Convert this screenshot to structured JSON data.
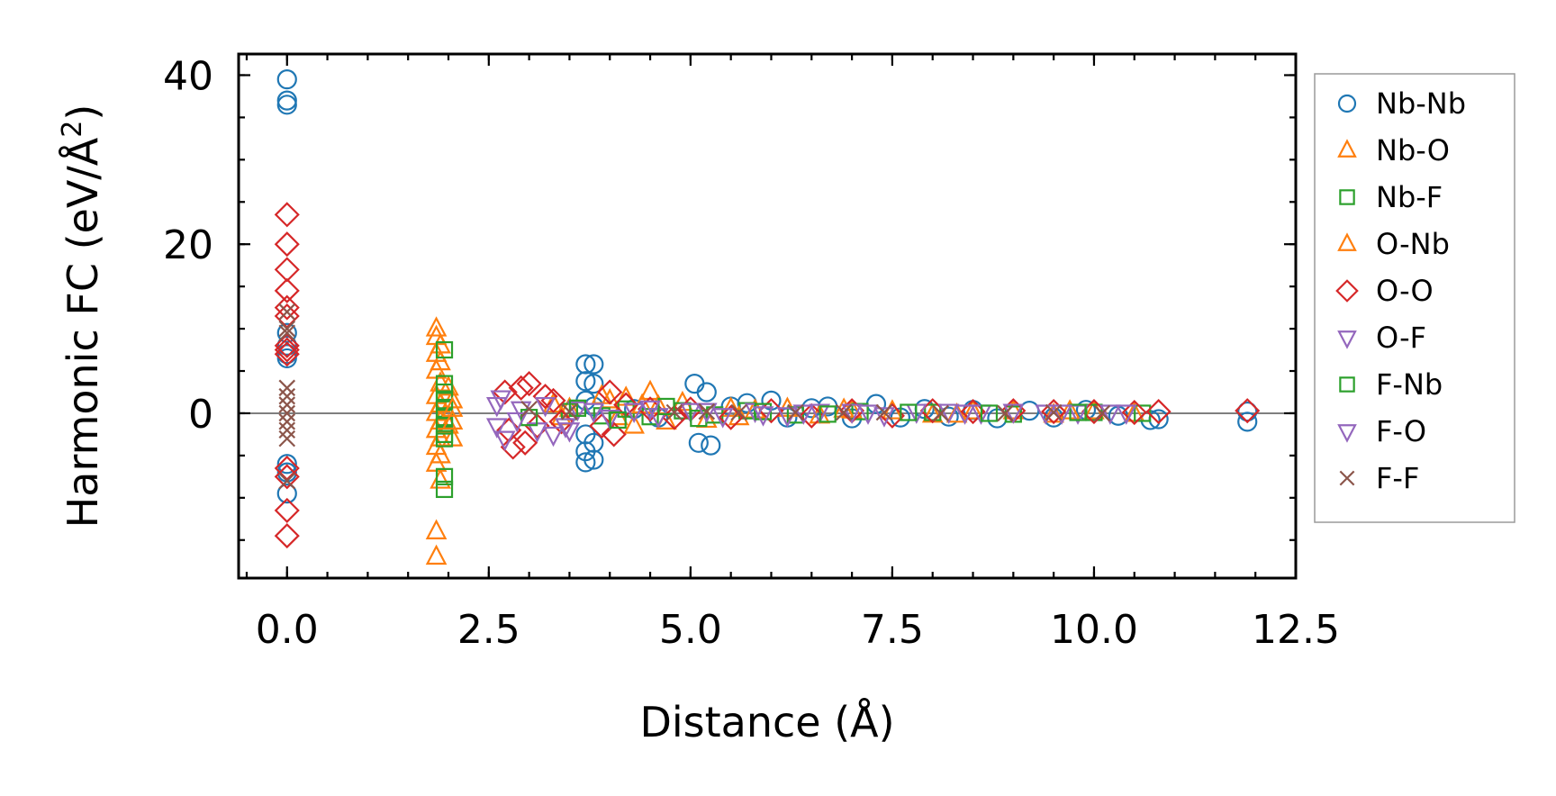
{
  "chart_data": {
    "type": "scatter",
    "title": "",
    "xlabel": "Distance (Å)",
    "ylabel_main": "Harmonic FC (eV/Å",
    "ylabel_sup": "2",
    "ylabel_close": ")",
    "xlim": [
      -0.6,
      12.5
    ],
    "ylim": [
      -19.5,
      42.5
    ],
    "xticks": [
      0.0,
      2.5,
      5.0,
      7.5,
      10.0,
      12.5
    ],
    "xtick_labels": [
      "0.0",
      "2.5",
      "5.0",
      "7.5",
      "10.0",
      "12.5"
    ],
    "yticks": [
      0,
      20,
      40
    ],
    "ytick_labels": [
      "0",
      "20",
      "40"
    ],
    "x_minor_step": 0.5,
    "y_minor_step": 5,
    "zero_line": true,
    "legend_position": "outside-right",
    "series": [
      {
        "name": "Nb-Nb",
        "marker": "circle",
        "color": "#1f77b4",
        "points": [
          [
            0,
            39.5
          ],
          [
            0,
            37
          ],
          [
            0,
            36.5
          ],
          [
            0,
            9.5
          ],
          [
            0,
            8
          ],
          [
            0,
            7
          ],
          [
            0,
            6.5
          ],
          [
            0,
            -6
          ],
          [
            0,
            -7
          ],
          [
            0,
            -9.5
          ],
          [
            3.7,
            5.8
          ],
          [
            3.8,
            5.8
          ],
          [
            3.7,
            3.8
          ],
          [
            3.8,
            3.5
          ],
          [
            3.7,
            1.5
          ],
          [
            3.8,
            0.8
          ],
          [
            3.7,
            -2.5
          ],
          [
            3.8,
            -3.5
          ],
          [
            3.7,
            -4.5
          ],
          [
            3.8,
            -5.5
          ],
          [
            3.7,
            -5.8
          ],
          [
            4.3,
            0.5
          ],
          [
            4.6,
            -0.5
          ],
          [
            5.05,
            3.5
          ],
          [
            5.1,
            -3.5
          ],
          [
            5.2,
            2.5
          ],
          [
            5.25,
            -3.8
          ],
          [
            5.5,
            0.8
          ],
          [
            5.7,
            1.2
          ],
          [
            6.0,
            1.5
          ],
          [
            6.2,
            -0.5
          ],
          [
            6.5,
            0.6
          ],
          [
            6.7,
            0.8
          ],
          [
            7.0,
            -0.6
          ],
          [
            7.3,
            1.1
          ],
          [
            7.6,
            -0.5
          ],
          [
            7.9,
            0.5
          ],
          [
            8.2,
            -0.4
          ],
          [
            8.5,
            0.4
          ],
          [
            8.8,
            -0.6
          ],
          [
            9.2,
            0.3
          ],
          [
            9.5,
            -0.5
          ],
          [
            9.9,
            0.4
          ],
          [
            10.3,
            -0.3
          ],
          [
            10.7,
            -0.8
          ],
          [
            10.8,
            -0.7
          ],
          [
            11.9,
            -1.0
          ],
          [
            11.9,
            0.2
          ]
        ]
      },
      {
        "name": "Nb-O",
        "marker": "triangle-up",
        "color": "#ff7f0e",
        "points": [
          [
            1.85,
            10
          ],
          [
            1.85,
            9
          ],
          [
            1.9,
            8
          ],
          [
            1.85,
            7
          ],
          [
            1.9,
            6
          ],
          [
            1.85,
            5
          ],
          [
            1.9,
            3.5
          ],
          [
            1.85,
            2
          ],
          [
            1.9,
            1
          ],
          [
            1.85,
            0
          ],
          [
            1.9,
            -1
          ],
          [
            1.85,
            -2
          ],
          [
            1.9,
            -3
          ],
          [
            1.85,
            -4
          ],
          [
            1.9,
            -5
          ],
          [
            1.85,
            -6
          ],
          [
            1.9,
            -8
          ],
          [
            1.85,
            -14
          ],
          [
            1.85,
            -17
          ],
          [
            2.0,
            3
          ],
          [
            2.05,
            1.5
          ],
          [
            2.0,
            -1.5
          ],
          [
            2.05,
            -3
          ],
          [
            3.3,
            1
          ],
          [
            3.5,
            0.5
          ],
          [
            3.9,
            2
          ],
          [
            4.0,
            1.5
          ],
          [
            4.1,
            -0.5
          ],
          [
            4.2,
            1.8
          ],
          [
            4.3,
            -1.5
          ],
          [
            4.5,
            2.5
          ],
          [
            4.6,
            0.8
          ],
          [
            4.7,
            -1.0
          ],
          [
            4.9,
            1.2
          ],
          [
            5.2,
            -0.8
          ],
          [
            5.5,
            0.5
          ],
          [
            5.8,
            0.3
          ],
          [
            6.2,
            0.5
          ],
          [
            6.6,
            -0.3
          ],
          [
            7.0,
            0.3
          ],
          [
            7.5,
            0.2
          ],
          [
            8.0,
            -0.2
          ],
          [
            8.5,
            0.2
          ],
          [
            9.0,
            0.2
          ],
          [
            9.5,
            -0.2
          ],
          [
            10.0,
            0.2
          ],
          [
            10.5,
            -0.1
          ]
        ]
      },
      {
        "name": "Nb-F",
        "marker": "square",
        "color": "#2ca02c",
        "points": [
          [
            1.95,
            7.5
          ],
          [
            1.95,
            3.5
          ],
          [
            1.95,
            2.5
          ],
          [
            1.95,
            1.5
          ],
          [
            1.95,
            0.5
          ],
          [
            1.95,
            -0.5
          ],
          [
            1.95,
            -1.5
          ],
          [
            1.95,
            -2.5
          ],
          [
            1.95,
            -3
          ],
          [
            1.95,
            -7.5
          ],
          [
            1.95,
            -9
          ],
          [
            3.5,
            0.2
          ],
          [
            3.9,
            -0.3
          ],
          [
            4.2,
            0.5
          ],
          [
            4.5,
            -0.4
          ],
          [
            4.9,
            0.3
          ],
          [
            5.3,
            -0.2
          ],
          [
            5.7,
            0.3
          ],
          [
            6.3,
            -0.2
          ],
          [
            7.1,
            0.2
          ],
          [
            8.0,
            0.1
          ],
          [
            9.0,
            -0.1
          ],
          [
            10.0,
            0.1
          ],
          [
            10.6,
            0.0
          ]
        ]
      },
      {
        "name": "O-Nb",
        "marker": "triangle-up",
        "color": "#ff7f0e",
        "points": [
          [
            2.05,
            0.5
          ],
          [
            2.05,
            -1
          ],
          [
            3.4,
            -0.5
          ],
          [
            4.4,
            0.9
          ],
          [
            5.6,
            -0.5
          ],
          [
            6.9,
            0.4
          ],
          [
            8.3,
            -0.2
          ],
          [
            9.7,
            0.2
          ]
        ]
      },
      {
        "name": "O-O",
        "marker": "diamond",
        "color": "#d62728",
        "points": [
          [
            0,
            23.5
          ],
          [
            0,
            20
          ],
          [
            0,
            17
          ],
          [
            0,
            14.5
          ],
          [
            0,
            12.5
          ],
          [
            0,
            11.5
          ],
          [
            0,
            8
          ],
          [
            0,
            7.5
          ],
          [
            0,
            7
          ],
          [
            0,
            -6.5
          ],
          [
            0,
            -7.5
          ],
          [
            0,
            -11.5
          ],
          [
            0,
            -14.5
          ],
          [
            2.7,
            2.5
          ],
          [
            2.75,
            -2
          ],
          [
            2.8,
            -4
          ],
          [
            2.9,
            3
          ],
          [
            2.95,
            -3.5
          ],
          [
            3.0,
            3.5
          ],
          [
            3.1,
            -1.5
          ],
          [
            3.2,
            2
          ],
          [
            3.3,
            1.5
          ],
          [
            3.4,
            -1
          ],
          [
            3.9,
            -1.5
          ],
          [
            4.0,
            2.5
          ],
          [
            4.05,
            -2.5
          ],
          [
            4.2,
            1
          ],
          [
            4.5,
            0.5
          ],
          [
            4.8,
            -0.5
          ],
          [
            5.0,
            0.5
          ],
          [
            5.5,
            -0.5
          ],
          [
            6.0,
            0.3
          ],
          [
            6.5,
            -0.3
          ],
          [
            7.0,
            0.3
          ],
          [
            7.5,
            -0.3
          ],
          [
            8.0,
            0.3
          ],
          [
            8.5,
            0.2
          ],
          [
            9.0,
            0.3
          ],
          [
            9.5,
            0.2
          ],
          [
            10.0,
            0.2
          ],
          [
            10.5,
            0.1
          ],
          [
            10.8,
            0.2
          ],
          [
            11.9,
            0.3
          ]
        ]
      },
      {
        "name": "O-F",
        "marker": "triangle-down",
        "color": "#9467bd",
        "points": [
          [
            2.6,
            1
          ],
          [
            2.6,
            -1.5
          ],
          [
            2.7,
            -3
          ],
          [
            2.9,
            0.5
          ],
          [
            3.1,
            -2
          ],
          [
            3.3,
            -2.5
          ],
          [
            3.5,
            -2
          ],
          [
            3.6,
            0.5
          ],
          [
            4.0,
            -0.5
          ],
          [
            4.3,
            0.3
          ],
          [
            4.6,
            -0.3
          ],
          [
            5.0,
            0.3
          ],
          [
            5.4,
            -0.3
          ],
          [
            5.8,
            0.3
          ],
          [
            6.2,
            -0.2
          ],
          [
            6.6,
            0.2
          ],
          [
            7.0,
            0.2
          ],
          [
            7.4,
            -0.2
          ],
          [
            7.8,
            0.2
          ],
          [
            8.2,
            0.2
          ],
          [
            8.6,
            0.1
          ],
          [
            9.0,
            0.2
          ],
          [
            9.4,
            0.1
          ],
          [
            9.8,
            0.1
          ],
          [
            10.2,
            0.1
          ]
        ]
      },
      {
        "name": "F-Nb",
        "marker": "square",
        "color": "#2ca02c",
        "points": [
          [
            3.0,
            -0.5
          ],
          [
            3.6,
            0.6
          ],
          [
            4.1,
            -0.8
          ],
          [
            4.7,
            0.8
          ],
          [
            5.1,
            -0.6
          ],
          [
            5.9,
            0.2
          ],
          [
            6.7,
            -0.1
          ],
          [
            7.7,
            0.1
          ],
          [
            8.7,
            0.0
          ],
          [
            9.8,
            0.1
          ]
        ]
      },
      {
        "name": "F-O",
        "marker": "triangle-down",
        "color": "#9467bd",
        "points": [
          [
            2.65,
            1.8
          ],
          [
            2.85,
            -0.8
          ],
          [
            3.2,
            1.0
          ],
          [
            3.45,
            -1.5
          ],
          [
            3.8,
            0.3
          ],
          [
            4.5,
            0.6
          ],
          [
            5.2,
            0.3
          ],
          [
            5.9,
            -0.1
          ],
          [
            6.4,
            0.1
          ],
          [
            7.2,
            0.1
          ],
          [
            8.4,
            0.1
          ],
          [
            9.6,
            0.1
          ],
          [
            10.4,
            0.1
          ]
        ]
      },
      {
        "name": "F-F",
        "marker": "x",
        "color": "#8c564b",
        "points": [
          [
            0,
            12
          ],
          [
            0,
            10
          ],
          [
            0,
            9.5
          ],
          [
            0,
            3
          ],
          [
            0,
            2
          ],
          [
            0,
            1
          ],
          [
            0,
            0
          ],
          [
            0,
            -1
          ],
          [
            0,
            -2
          ],
          [
            0,
            -3
          ],
          [
            0,
            -8
          ],
          [
            3.0,
            0.5
          ],
          [
            3.5,
            0.2
          ],
          [
            4.8,
            0.1
          ],
          [
            5.2,
            0.2
          ],
          [
            5.6,
            0.1
          ],
          [
            6.3,
            0.1
          ],
          [
            6.9,
            0.1
          ],
          [
            7.4,
            0.1
          ],
          [
            8.1,
            0.0
          ],
          [
            8.9,
            0.0
          ],
          [
            9.5,
            0.1
          ],
          [
            10.1,
            0.0
          ]
        ]
      }
    ]
  }
}
